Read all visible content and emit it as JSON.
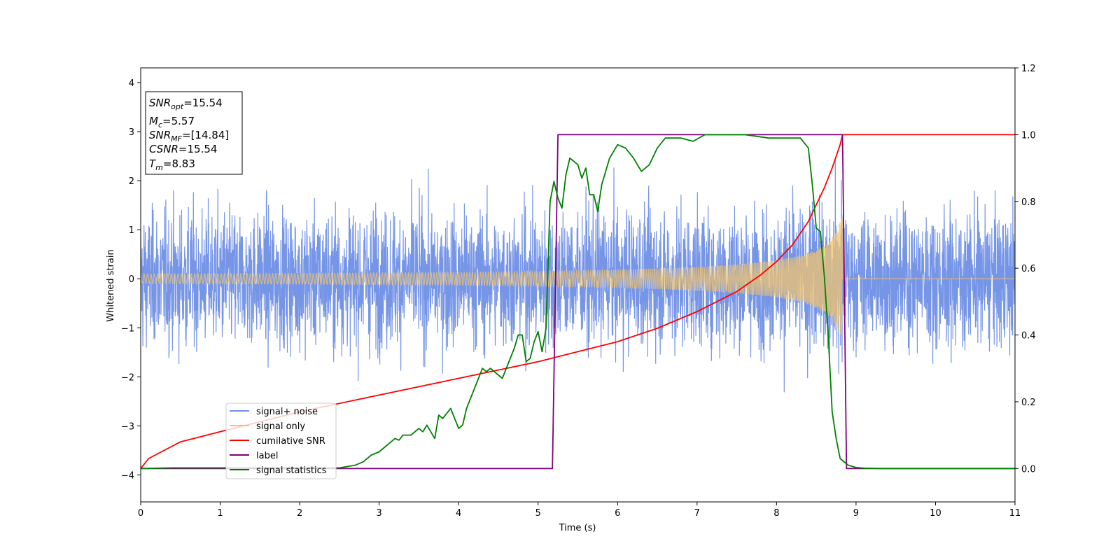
{
  "chart_data": {
    "type": "line",
    "title": "",
    "xlabel": "Time (s)",
    "ylabel": "Whitened strain",
    "xlim": [
      0,
      11
    ],
    "ylim_left": [
      -4.55,
      4.3
    ],
    "ylim_right": [
      -0.1,
      1.2
    ],
    "x_ticks": [
      "0",
      "1",
      "2",
      "3",
      "4",
      "5",
      "6",
      "7",
      "8",
      "9",
      "10",
      "11"
    ],
    "y_left_ticks": [
      "−4",
      "−3",
      "−2",
      "−1",
      "0",
      "1",
      "2",
      "3",
      "4"
    ],
    "y_right_ticks": [
      "0.0",
      "0.2",
      "0.4",
      "0.6",
      "0.8",
      "1.0",
      "1.2"
    ],
    "colors": {
      "signal_noise": "#6f8fe6",
      "signal_only": "#f2c46d",
      "cumulative_snr": "#ff0000",
      "label": "#800080",
      "signal_statistics": "#008000"
    },
    "legend": {
      "placement": "lower-left",
      "entries": [
        "signal+ noise",
        "signal only",
        "cumilative SNR",
        "label",
        "signal statistics"
      ]
    },
    "info_box": {
      "placement": "upper-left",
      "lines": [
        {
          "base": "SNR",
          "sub": "opt",
          "rest": "=15.54"
        },
        {
          "base": "M",
          "sub": "c",
          "rest": "=5.57"
        },
        {
          "base": "SNR",
          "sub": "MF",
          "rest": "=[14.84]"
        },
        {
          "base": "CSNR",
          "sub": "",
          "rest": "=15.54"
        },
        {
          "base": "T",
          "sub": "m",
          "rest": "=8.83"
        }
      ]
    },
    "series": [
      {
        "name": "signal+ noise",
        "axis": "left",
        "description_values": {
          "noise_std": 1.0,
          "signal_end_time": 8.83
        }
      },
      {
        "name": "signal only",
        "axis": "left",
        "envelope": {
          "x": [
            0,
            2,
            4,
            5,
            6,
            7,
            7.5,
            8,
            8.3,
            8.5,
            8.65,
            8.75,
            8.83,
            8.84,
            11
          ],
          "amp": [
            0.1,
            0.11,
            0.13,
            0.15,
            0.18,
            0.24,
            0.29,
            0.38,
            0.47,
            0.59,
            0.75,
            0.95,
            1.3,
            0,
            0
          ]
        }
      },
      {
        "name": "cumilative SNR",
        "axis": "right",
        "x": [
          0,
          0.1,
          0.5,
          1,
          2,
          3,
          4,
          5,
          5.5,
          6,
          6.5,
          7,
          7.5,
          7.8,
          8,
          8.2,
          8.4,
          8.5,
          8.6,
          8.7,
          8.8,
          8.83,
          8.84,
          11
        ],
        "y": [
          0.0,
          0.03,
          0.08,
          0.11,
          0.17,
          0.22,
          0.27,
          0.32,
          0.35,
          0.38,
          0.42,
          0.47,
          0.53,
          0.58,
          0.62,
          0.67,
          0.74,
          0.79,
          0.84,
          0.9,
          0.97,
          1.0,
          1.0,
          1.0
        ]
      },
      {
        "name": "label",
        "axis": "right",
        "x": [
          0,
          5.18,
          5.25,
          8.83,
          8.88,
          11
        ],
        "y": [
          0,
          0,
          1,
          1,
          0,
          0
        ]
      },
      {
        "name": "signal statistics",
        "axis": "right",
        "x": [
          0,
          0.4,
          2.5,
          2.7,
          2.8,
          2.9,
          3.0,
          3.1,
          3.15,
          3.2,
          3.25,
          3.3,
          3.4,
          3.5,
          3.55,
          3.6,
          3.7,
          3.75,
          3.8,
          3.9,
          4.0,
          4.05,
          4.1,
          4.2,
          4.3,
          4.35,
          4.4,
          4.5,
          4.55,
          4.6,
          4.7,
          4.75,
          4.8,
          4.85,
          4.9,
          4.95,
          5.0,
          5.05,
          5.1,
          5.15,
          5.2,
          5.25,
          5.3,
          5.35,
          5.4,
          5.5,
          5.55,
          5.6,
          5.65,
          5.7,
          5.75,
          5.8,
          5.9,
          6.0,
          6.1,
          6.2,
          6.3,
          6.4,
          6.5,
          6.6,
          6.8,
          6.95,
          7.1,
          7.3,
          7.6,
          7.9,
          8.1,
          8.3,
          8.4,
          8.45,
          8.5,
          8.55,
          8.6,
          8.65,
          8.7,
          8.75,
          8.8,
          8.9,
          9.0,
          9.1,
          9.3,
          9.6,
          11
        ],
        "y": [
          0.0,
          0.002,
          0.002,
          0.01,
          0.02,
          0.04,
          0.05,
          0.07,
          0.08,
          0.09,
          0.085,
          0.1,
          0.1,
          0.12,
          0.11,
          0.13,
          0.09,
          0.16,
          0.15,
          0.18,
          0.12,
          0.13,
          0.18,
          0.24,
          0.3,
          0.29,
          0.3,
          0.28,
          0.27,
          0.3,
          0.36,
          0.4,
          0.4,
          0.32,
          0.33,
          0.38,
          0.41,
          0.35,
          0.42,
          0.8,
          0.86,
          0.81,
          0.78,
          0.88,
          0.93,
          0.91,
          0.87,
          0.9,
          0.82,
          0.82,
          0.77,
          0.85,
          0.93,
          0.97,
          0.96,
          0.93,
          0.89,
          0.91,
          0.96,
          0.99,
          0.99,
          0.98,
          1.0,
          1.0,
          1.0,
          0.99,
          0.99,
          0.99,
          0.96,
          0.85,
          0.72,
          0.71,
          0.58,
          0.4,
          0.17,
          0.09,
          0.03,
          0.01,
          0.003,
          0.001,
          0.0,
          0.0,
          0.0
        ]
      }
    ]
  }
}
